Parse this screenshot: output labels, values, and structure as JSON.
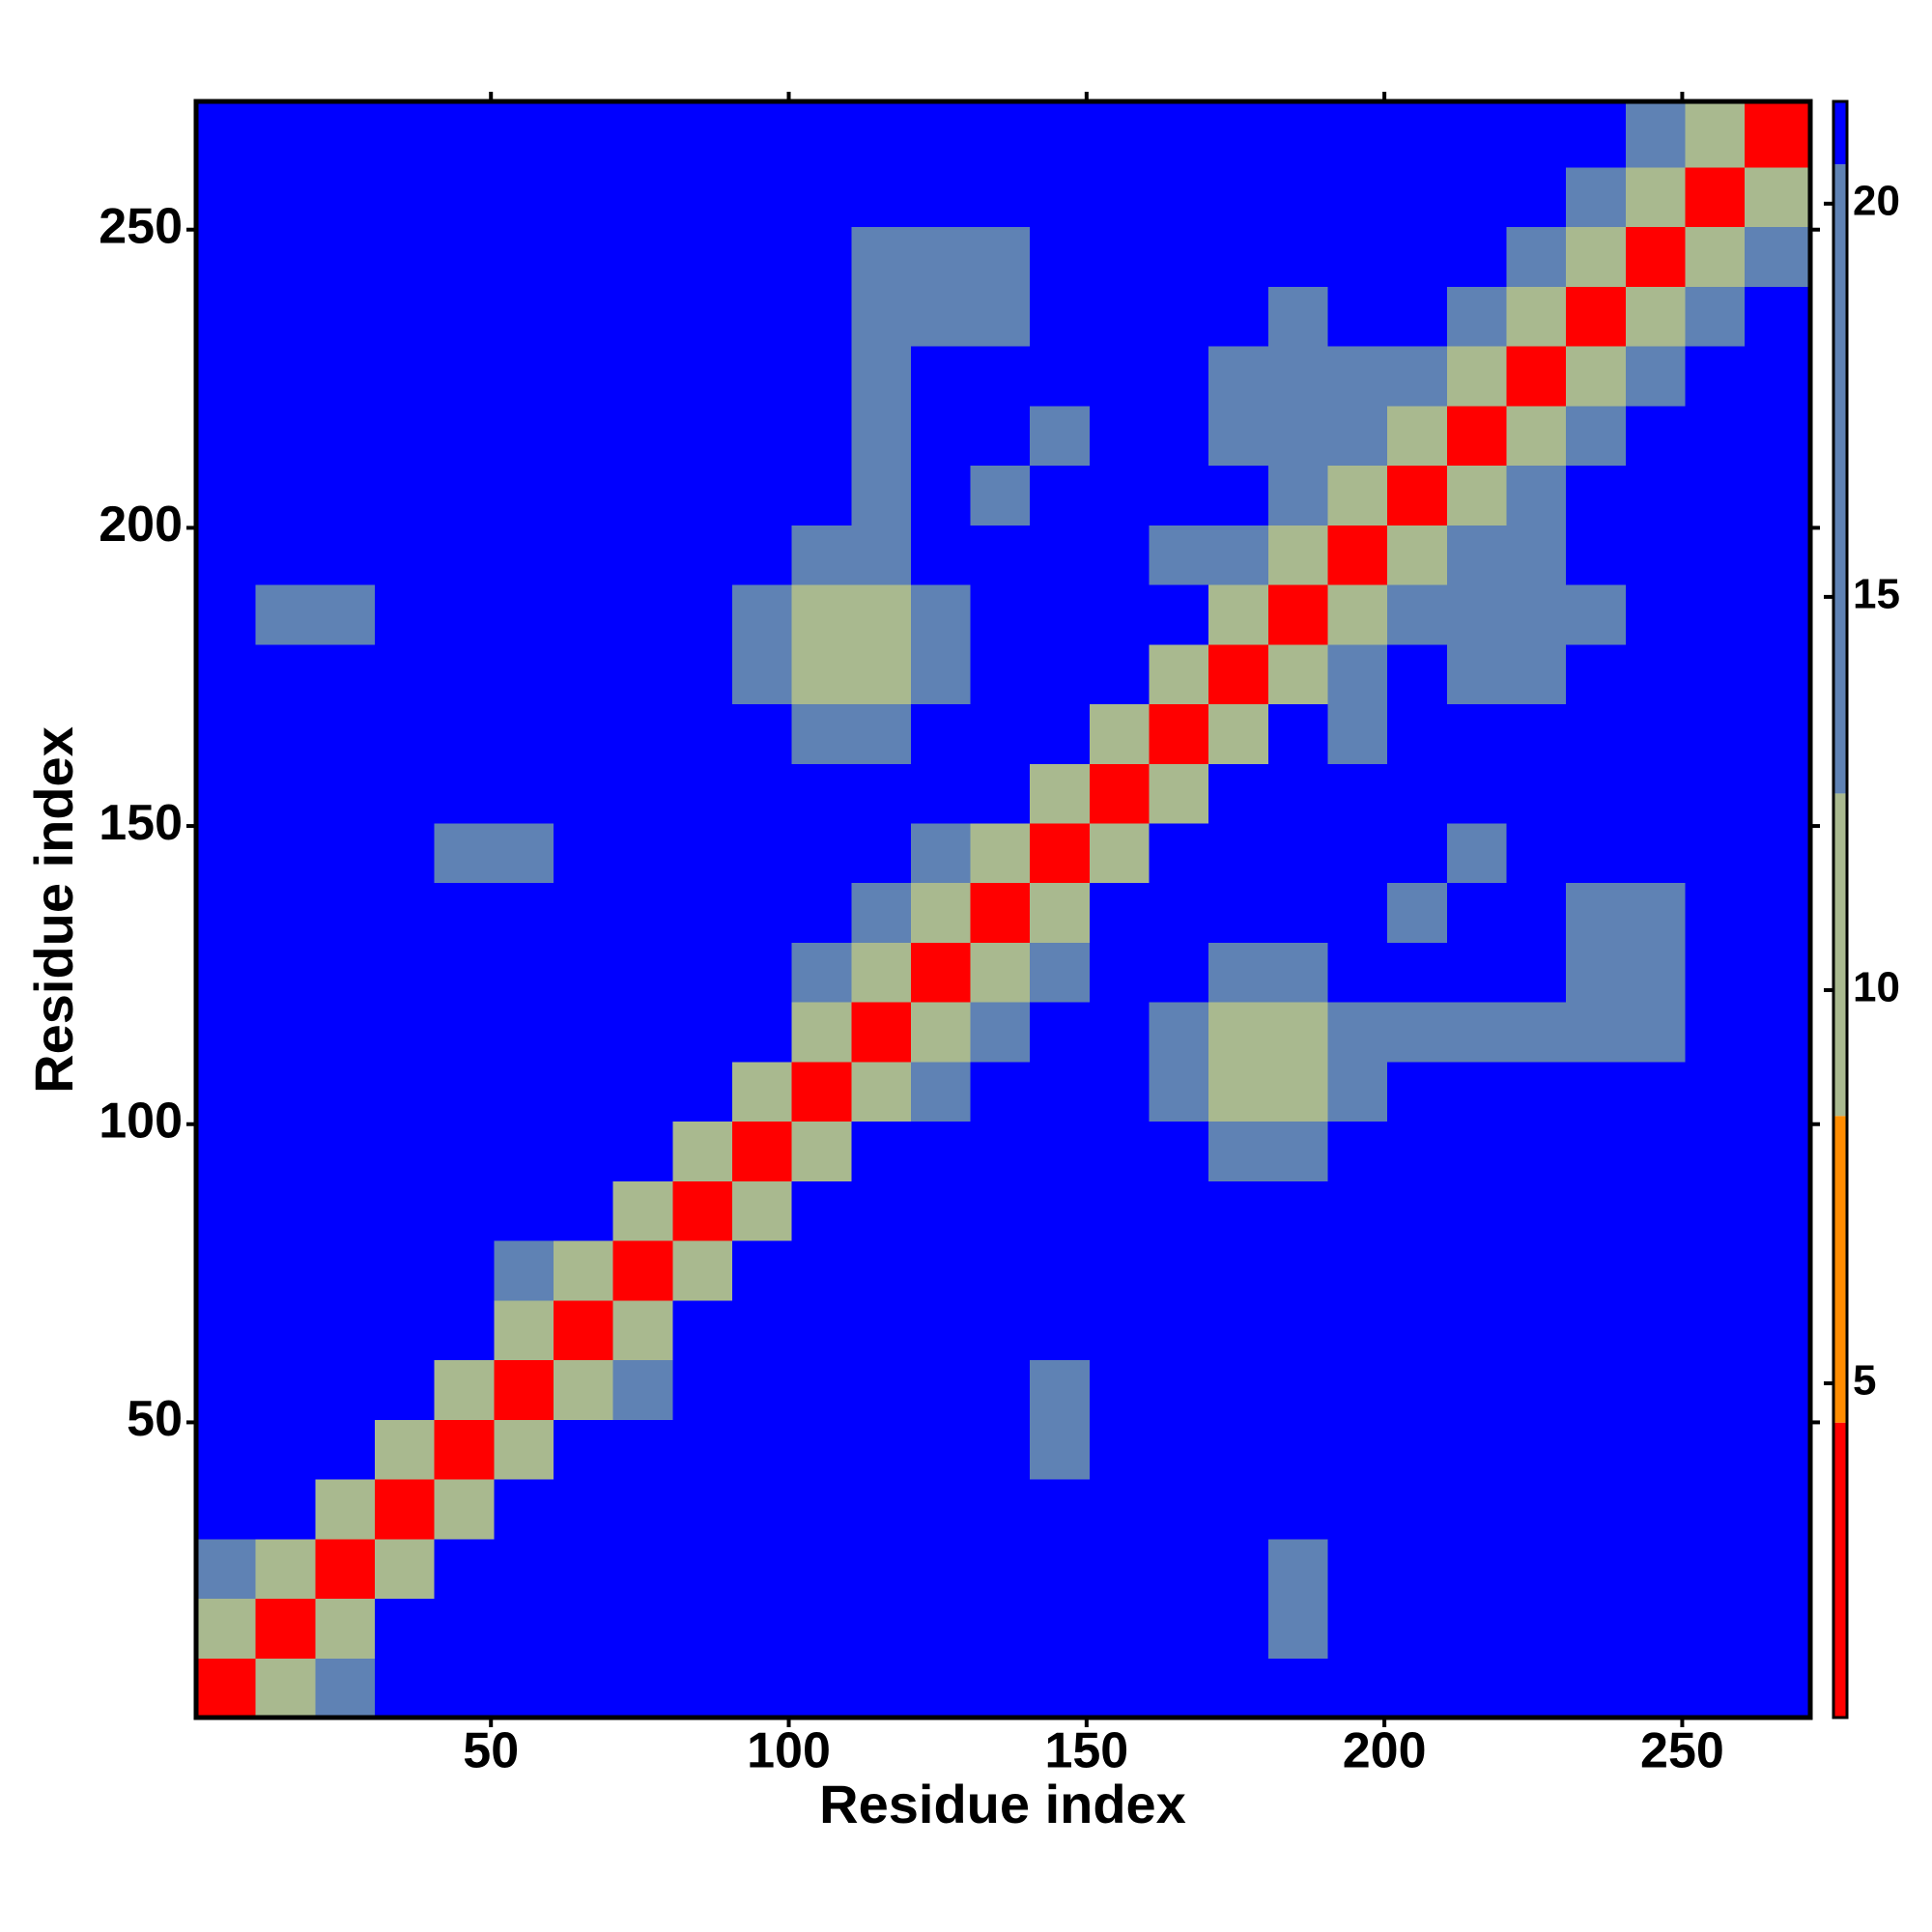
{
  "chart_data": {
    "type": "heatmap",
    "x_label": "Residue index",
    "y_label": "Residue index",
    "xlim": [
      0.5,
      271.5
    ],
    "ylim": [
      0.5,
      271.5
    ],
    "xticks": [
      50,
      100,
      150,
      200,
      250
    ],
    "yticks": [
      50,
      100,
      150,
      200,
      250
    ],
    "x_bins": [
      0.5,
      10.5,
      20.5,
      30.5,
      40.5,
      50.5,
      60.5,
      70.5,
      80.5,
      90.5,
      100.5,
      110.5,
      120.5,
      130.5,
      140.5,
      150.5,
      160.5,
      170.5,
      180.5,
      190.5,
      200.5,
      210.5,
      220.5,
      230.5,
      240.5,
      250.5,
      260.5,
      271.5
    ],
    "y_bins": [
      0.5,
      10.5,
      20.5,
      30.5,
      40.5,
      50.5,
      60.5,
      70.5,
      80.5,
      90.5,
      100.5,
      110.5,
      120.5,
      130.5,
      140.5,
      150.5,
      160.5,
      170.5,
      180.5,
      190.5,
      200.5,
      210.5,
      220.5,
      230.5,
      240.5,
      250.5,
      260.5,
      271.5
    ],
    "zlim": [
      0.75,
      21.3
    ],
    "zticks": [
      5,
      10,
      15,
      20
    ],
    "color_bands": [
      {
        "max": 4.5,
        "color": "#ff0000"
      },
      {
        "max": 8.4,
        "color": "#ff8c00"
      },
      {
        "max": 12.5,
        "color": "#a9b98f"
      },
      {
        "max": 20.5,
        "color": "#5f82b4"
      },
      {
        "max": 21.3,
        "color": "#0000ff"
      }
    ],
    "z": [
      [
        4,
        12,
        16,
        21,
        21,
        21,
        21,
        21,
        21,
        21,
        21,
        21,
        21,
        21,
        21,
        21,
        21,
        21,
        21,
        21,
        21,
        21,
        21,
        21,
        21,
        21,
        21
      ],
      [
        12,
        4,
        12,
        21,
        21,
        21,
        21,
        21,
        21,
        21,
        21,
        21,
        21,
        21,
        21,
        21,
        21,
        21,
        17,
        21,
        21,
        21,
        21,
        21,
        21,
        21,
        21
      ],
      [
        16,
        12,
        4,
        12,
        21,
        21,
        21,
        21,
        21,
        21,
        21,
        21,
        21,
        21,
        21,
        21,
        21,
        21,
        17,
        21,
        21,
        21,
        21,
        21,
        21,
        21,
        21
      ],
      [
        21,
        21,
        12,
        4,
        12,
        21,
        21,
        21,
        21,
        21,
        21,
        21,
        21,
        21,
        21,
        21,
        21,
        21,
        21,
        21,
        21,
        21,
        21,
        21,
        21,
        21,
        21
      ],
      [
        21,
        21,
        21,
        12,
        4,
        12,
        21,
        21,
        21,
        21,
        21,
        21,
        21,
        21,
        17,
        21,
        21,
        21,
        21,
        21,
        21,
        21,
        21,
        21,
        21,
        21,
        21
      ],
      [
        21,
        21,
        21,
        21,
        12,
        4,
        12,
        16,
        21,
        21,
        21,
        21,
        21,
        21,
        17,
        21,
        21,
        21,
        21,
        21,
        21,
        21,
        21,
        21,
        21,
        21,
        21
      ],
      [
        21,
        21,
        21,
        21,
        21,
        12,
        4,
        12,
        21,
        21,
        21,
        21,
        21,
        21,
        21,
        21,
        21,
        21,
        21,
        21,
        21,
        21,
        21,
        21,
        21,
        21,
        21
      ],
      [
        21,
        21,
        21,
        21,
        21,
        16,
        12,
        4,
        12,
        21,
        21,
        21,
        21,
        21,
        21,
        21,
        21,
        21,
        21,
        21,
        21,
        21,
        21,
        21,
        21,
        21,
        21
      ],
      [
        21,
        21,
        21,
        21,
        21,
        21,
        21,
        12,
        4,
        12,
        21,
        21,
        21,
        21,
        21,
        21,
        21,
        21,
        21,
        21,
        21,
        21,
        21,
        21,
        21,
        21,
        21
      ],
      [
        21,
        21,
        21,
        21,
        21,
        21,
        21,
        21,
        12,
        4,
        12,
        21,
        21,
        21,
        21,
        21,
        21,
        16,
        16,
        21,
        21,
        21,
        21,
        21,
        21,
        21,
        21
      ],
      [
        21,
        21,
        21,
        21,
        21,
        21,
        21,
        21,
        21,
        12,
        4,
        12,
        16,
        21,
        21,
        21,
        16,
        12,
        12,
        16,
        21,
        21,
        21,
        21,
        21,
        21,
        21
      ],
      [
        21,
        21,
        21,
        21,
        21,
        21,
        21,
        21,
        21,
        21,
        12,
        4,
        12,
        16,
        21,
        21,
        16,
        12,
        12,
        16,
        18,
        17,
        17,
        17,
        17,
        21,
        21
      ],
      [
        21,
        21,
        21,
        21,
        21,
        21,
        21,
        21,
        21,
        21,
        16,
        12,
        4,
        12,
        17,
        21,
        21,
        16,
        16,
        21,
        21,
        21,
        21,
        17,
        17,
        21,
        21
      ],
      [
        21,
        21,
        21,
        21,
        21,
        21,
        21,
        21,
        21,
        21,
        21,
        16,
        12,
        4,
        12,
        21,
        21,
        21,
        21,
        21,
        18,
        21,
        21,
        17,
        18,
        21,
        21
      ],
      [
        21,
        21,
        21,
        21,
        17,
        17,
        21,
        21,
        21,
        21,
        21,
        21,
        17,
        12,
        4,
        12,
        21,
        21,
        21,
        21,
        21,
        18,
        21,
        21,
        21,
        21,
        21
      ],
      [
        21,
        21,
        21,
        21,
        21,
        21,
        21,
        21,
        21,
        21,
        21,
        21,
        21,
        21,
        12,
        4,
        12,
        21,
        21,
        21,
        21,
        21,
        21,
        21,
        21,
        21,
        21
      ],
      [
        21,
        21,
        21,
        21,
        21,
        21,
        21,
        21,
        21,
        21,
        16,
        16,
        21,
        21,
        21,
        12,
        4,
        12,
        21,
        16,
        21,
        21,
        21,
        21,
        21,
        21,
        21
      ],
      [
        21,
        21,
        21,
        21,
        21,
        21,
        21,
        21,
        21,
        16,
        12,
        12,
        16,
        21,
        21,
        21,
        12,
        4,
        12,
        16,
        21,
        17,
        17,
        21,
        21,
        21,
        21
      ],
      [
        21,
        17,
        17,
        21,
        21,
        21,
        21,
        21,
        21,
        16,
        12,
        12,
        16,
        21,
        21,
        21,
        21,
        12,
        4,
        12,
        16,
        16,
        17,
        17,
        21,
        21,
        21
      ],
      [
        21,
        21,
        21,
        21,
        21,
        21,
        21,
        21,
        21,
        21,
        16,
        16,
        21,
        21,
        21,
        21,
        16,
        16,
        12,
        4,
        12,
        16,
        16,
        21,
        21,
        21,
        21
      ],
      [
        21,
        21,
        21,
        21,
        21,
        21,
        21,
        21,
        21,
        21,
        21,
        18,
        21,
        18,
        21,
        21,
        21,
        21,
        16,
        12,
        4,
        12,
        17,
        21,
        21,
        21,
        21
      ],
      [
        21,
        21,
        21,
        21,
        21,
        21,
        21,
        21,
        21,
        21,
        21,
        17,
        21,
        21,
        18,
        21,
        21,
        17,
        16,
        16,
        12,
        4,
        12,
        17,
        21,
        21,
        21
      ],
      [
        21,
        21,
        21,
        21,
        21,
        21,
        21,
        21,
        21,
        21,
        21,
        17,
        21,
        21,
        21,
        21,
        21,
        17,
        17,
        16,
        17,
        12,
        4,
        12,
        17,
        21,
        21
      ],
      [
        21,
        21,
        21,
        21,
        21,
        21,
        21,
        21,
        21,
        21,
        21,
        17,
        17,
        17,
        21,
        21,
        21,
        21,
        17,
        21,
        21,
        17,
        12,
        4,
        12,
        17,
        21
      ],
      [
        21,
        21,
        21,
        21,
        21,
        21,
        21,
        21,
        21,
        21,
        21,
        17,
        17,
        18,
        21,
        21,
        21,
        21,
        21,
        21,
        21,
        21,
        17,
        12,
        4,
        12,
        14
      ],
      [
        21,
        21,
        21,
        21,
        21,
        21,
        21,
        21,
        21,
        21,
        21,
        21,
        21,
        21,
        21,
        21,
        21,
        21,
        21,
        21,
        21,
        21,
        21,
        17,
        12,
        4,
        12
      ],
      [
        21,
        21,
        21,
        21,
        21,
        21,
        21,
        21,
        21,
        21,
        21,
        21,
        21,
        21,
        21,
        21,
        21,
        21,
        21,
        21,
        21,
        21,
        21,
        21,
        14,
        12,
        4
      ]
    ]
  }
}
